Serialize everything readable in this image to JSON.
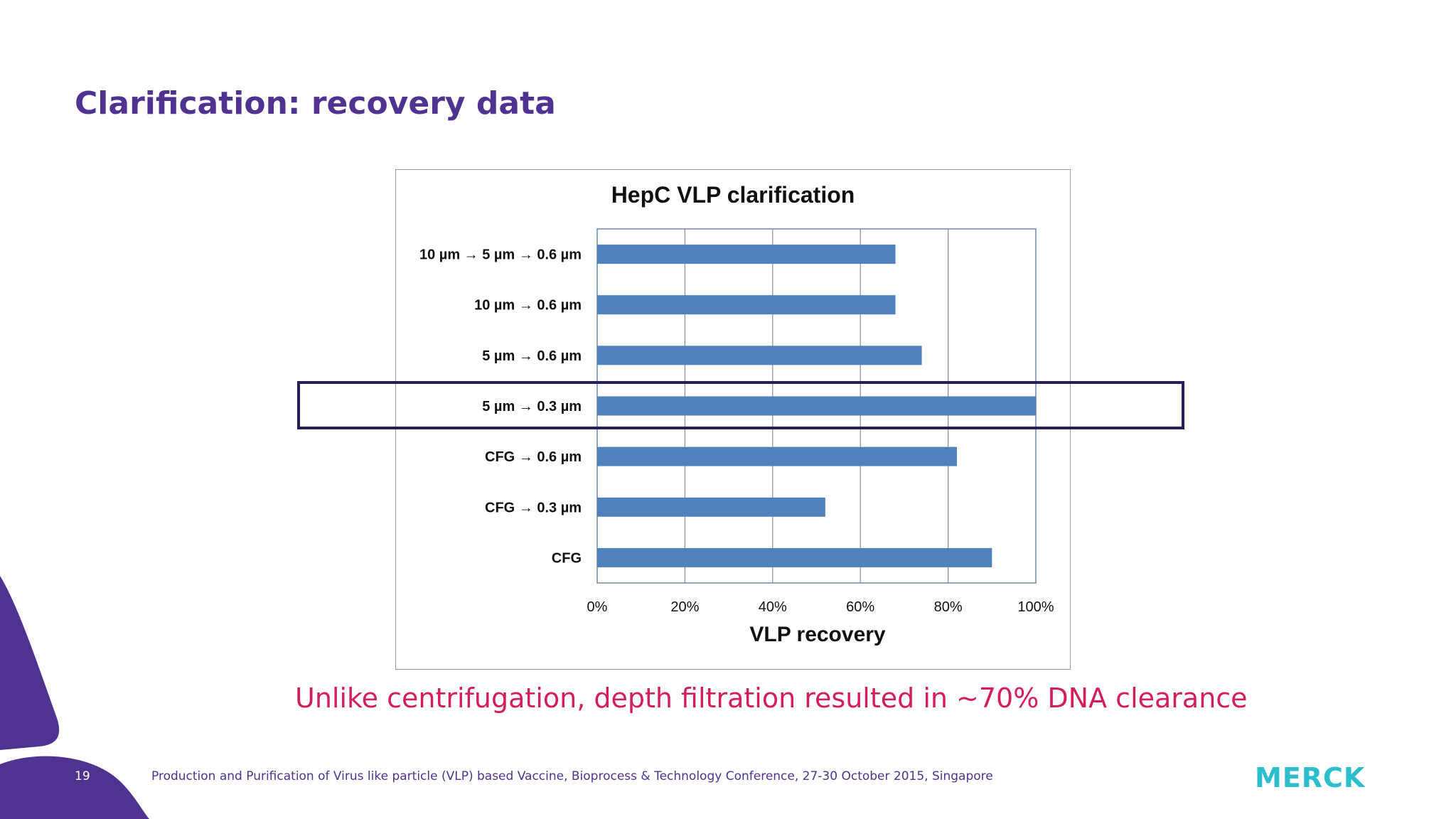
{
  "slide": {
    "title": "Clarification: recovery data",
    "callout": "Unlike centrifugation, depth filtration resulted in ~70% DNA clearance",
    "page_number": "19",
    "footer": "Production and Purification of Virus like particle (VLP) based Vaccine, Bioprocess & Technology Conference, 27-30 October 2015, Singapore",
    "brand": "MERCK"
  },
  "colors": {
    "title": "#503291",
    "accent": "#d41e5c",
    "bar": "#4f81bd",
    "highlight": "#2b1d5b",
    "brand": "#2dbecd"
  },
  "chart_data": {
    "type": "bar",
    "orientation": "horizontal",
    "title": "HepC VLP clarification",
    "xlabel": "VLP recovery",
    "ylabel": "",
    "categories": [
      "10 µm → 5 µm → 0.6 µm",
      "10 µm → 0.6 µm",
      "5 µm → 0.6 µm",
      "5 µm → 0.3 µm",
      "CFG → 0.6 µm",
      "CFG → 0.3 µm",
      "CFG"
    ],
    "values": [
      68,
      68,
      74,
      100,
      82,
      52,
      90
    ],
    "xlim": [
      0,
      100
    ],
    "x_ticks": [
      "0%",
      "20%",
      "40%",
      "60%",
      "80%",
      "100%"
    ],
    "x_tick_values": [
      0,
      20,
      40,
      60,
      80,
      100
    ],
    "grid": true,
    "highlighted_category": "5 µm → 0.3 µm"
  }
}
